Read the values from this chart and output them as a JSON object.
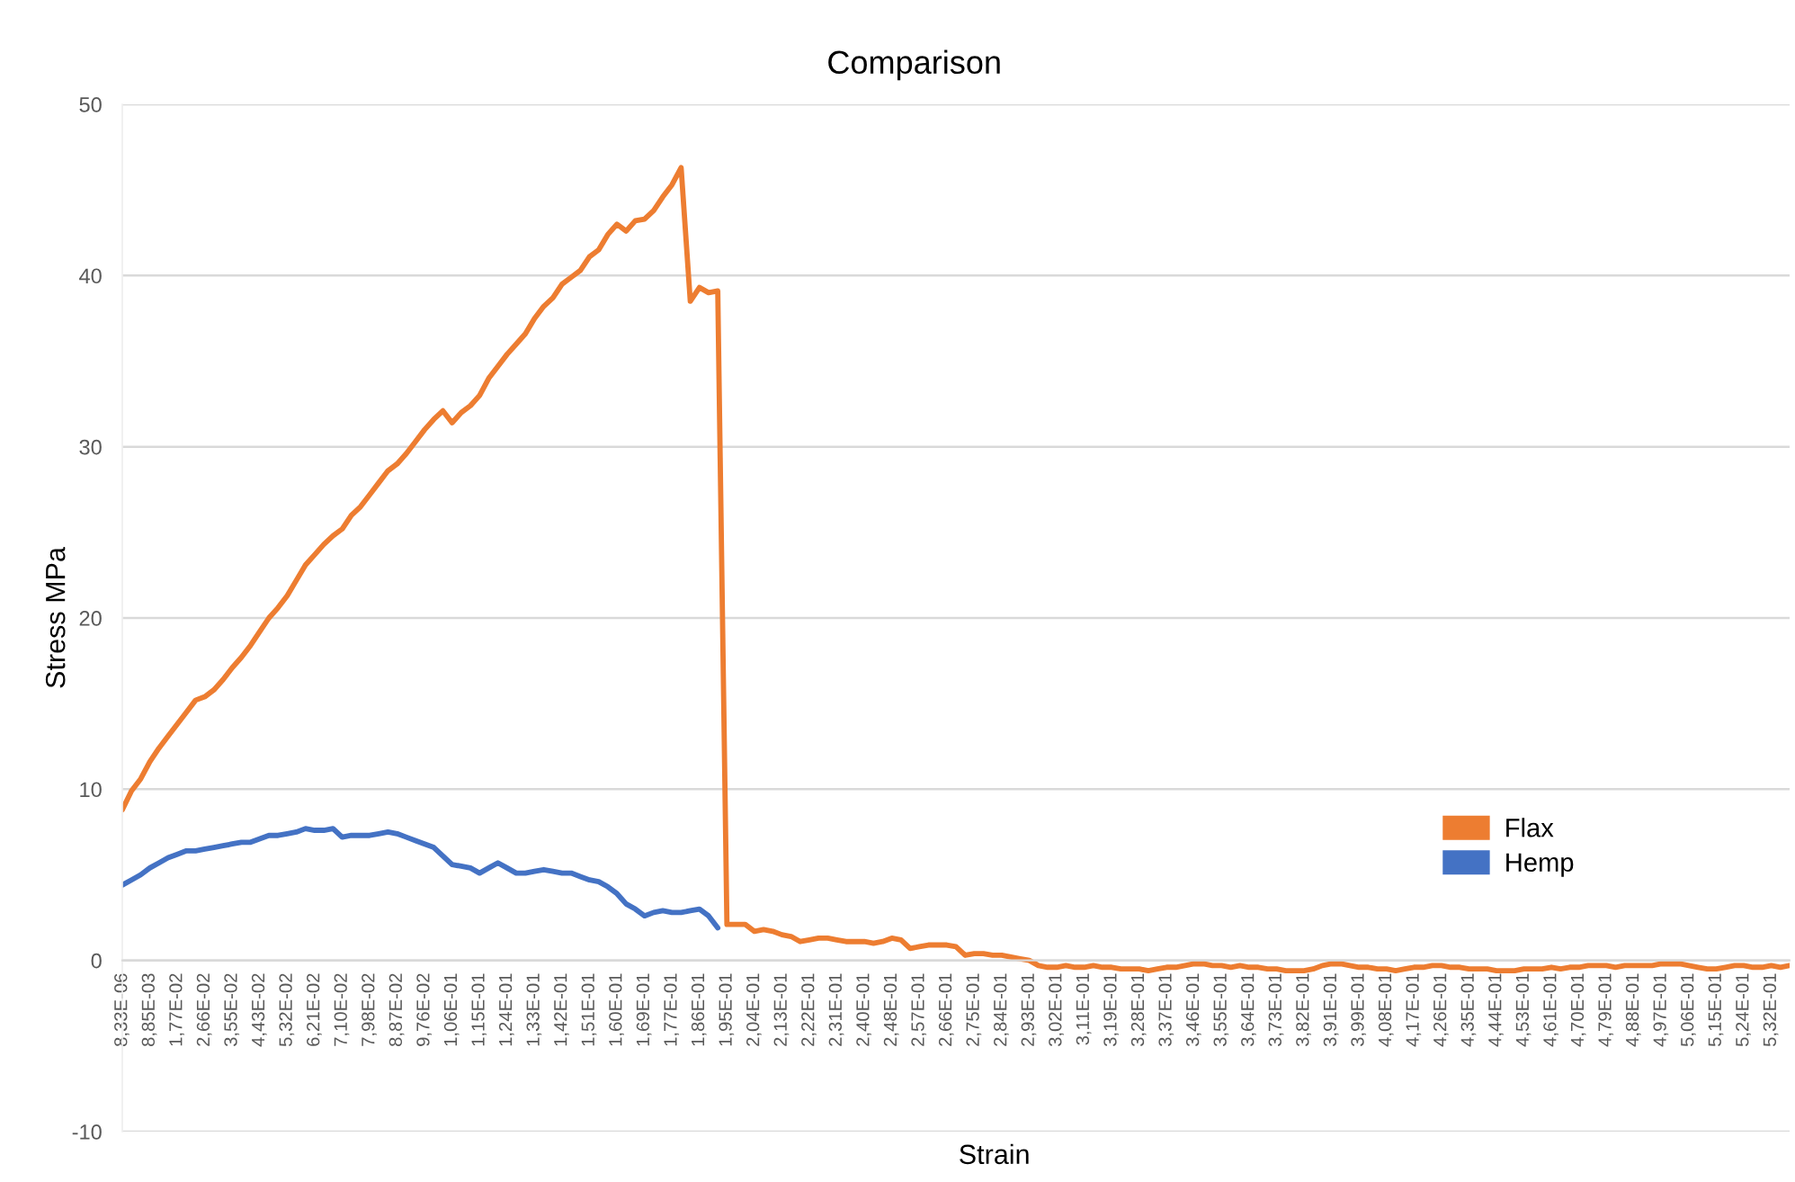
{
  "chart_data": {
    "type": "line",
    "title": "Comparison",
    "xlabel": "Strain",
    "ylabel": "Stress MPa",
    "categories": [
      "8,33E-06",
      null,
      null,
      "8,85E-03",
      null,
      null,
      "1,77E-02",
      null,
      null,
      "2,66E-02",
      null,
      null,
      "3,55E-02",
      null,
      null,
      "4,43E-02",
      null,
      null,
      "5,32E-02",
      null,
      null,
      "6,21E-02",
      null,
      null,
      "7,10E-02",
      null,
      null,
      "7,98E-02",
      null,
      null,
      "8,87E-02",
      null,
      null,
      "9,76E-02",
      null,
      null,
      "1,06E-01",
      null,
      null,
      "1,15E-01",
      null,
      null,
      "1,24E-01",
      null,
      null,
      "1,33E-01",
      null,
      null,
      "1,42E-01",
      null,
      null,
      "1,51E-01",
      null,
      null,
      "1,60E-01",
      null,
      null,
      "1,69E-01",
      null,
      null,
      "1,77E-01",
      null,
      null,
      "1,86E-01",
      null,
      null,
      "1,95E-01",
      null,
      null,
      "2,04E-01",
      null,
      null,
      "2,13E-01",
      null,
      null,
      "2,22E-01",
      null,
      null,
      "2,31E-01",
      null,
      null,
      "2,40E-01",
      null,
      null,
      "2,48E-01",
      null,
      null,
      "2,57E-01",
      null,
      null,
      "2,66E-01",
      null,
      null,
      "2,75E-01",
      null,
      null,
      "2,84E-01",
      null,
      null,
      "2,93E-01",
      null,
      null,
      "3,02E-01",
      null,
      null,
      "3,11E-01",
      null,
      null,
      "3,19E-01",
      null,
      null,
      "3,28E-01",
      null,
      null,
      "3,37E-01",
      null,
      null,
      "3,46E-01",
      null,
      null,
      "3,55E-01",
      null,
      null,
      "3,64E-01",
      null,
      null,
      "3,73E-01",
      null,
      null,
      "3,82E-01",
      null,
      null,
      "3,91E-01",
      null,
      null,
      "3,99E-01",
      null,
      null,
      "4,08E-01",
      null,
      null,
      "4,17E-01",
      null,
      null,
      "4,26E-01",
      null,
      null,
      "4,35E-01",
      null,
      null,
      "4,44E-01",
      null,
      null,
      "4,53E-01",
      null,
      null,
      "4,61E-01",
      null,
      null,
      "4,70E-01",
      null,
      null,
      "4,79E-01",
      null,
      null,
      "4,88E-01",
      null,
      null,
      "4,97E-01",
      null,
      null,
      "5,06E-01",
      null,
      null,
      "5,15E-01",
      null,
      null,
      "5,24E-01",
      null,
      null,
      "5,32E-01",
      null,
      null
    ],
    "ylim": [
      -10,
      50
    ],
    "yticks": [
      -10,
      0,
      10,
      20,
      30,
      40,
      50
    ],
    "grid": "y",
    "legend": "bottom right",
    "series": [
      {
        "name": "Flax",
        "color": "#ed7d31",
        "values": [
          8.8,
          9.9,
          10.6,
          11.6,
          12.4,
          13.1,
          13.8,
          14.5,
          15.2,
          15.4,
          15.8,
          16.4,
          17.1,
          17.7,
          18.4,
          19.2,
          20.0,
          20.6,
          21.3,
          22.2,
          23.1,
          23.7,
          24.3,
          24.8,
          25.2,
          26.0,
          26.5,
          27.2,
          27.9,
          28.6,
          29.0,
          29.6,
          30.3,
          31.0,
          31.6,
          32.1,
          31.4,
          32.0,
          32.4,
          33.0,
          34.0,
          34.7,
          35.4,
          36.0,
          36.6,
          37.5,
          38.2,
          38.7,
          39.5,
          39.9,
          40.3,
          41.1,
          41.5,
          42.4,
          43.0,
          42.6,
          43.2,
          43.3,
          43.8,
          44.6,
          45.3,
          46.3,
          38.5,
          39.3,
          39.0,
          39.1,
          2.1,
          2.1,
          2.1,
          1.7,
          1.8,
          1.7,
          1.5,
          1.4,
          1.1,
          1.2,
          1.3,
          1.3,
          1.2,
          1.1,
          1.1,
          1.1,
          1.0,
          1.1,
          1.3,
          1.2,
          0.7,
          0.8,
          0.9,
          0.9,
          0.9,
          0.8,
          0.3,
          0.4,
          0.4,
          0.3,
          0.3,
          0.2,
          0.1,
          0.0,
          -0.3,
          -0.4,
          -0.4,
          -0.3,
          -0.4,
          -0.4,
          -0.3,
          -0.4,
          -0.4,
          -0.5,
          -0.5,
          -0.5,
          -0.6,
          -0.5,
          -0.4,
          -0.4,
          -0.3,
          -0.2,
          -0.2,
          -0.3,
          -0.3,
          -0.4,
          -0.3,
          -0.4,
          -0.4,
          -0.5,
          -0.5,
          -0.6,
          -0.6,
          -0.6,
          -0.5,
          -0.3,
          -0.2,
          -0.2,
          -0.3,
          -0.4,
          -0.4,
          -0.5,
          -0.5,
          -0.6,
          -0.5,
          -0.4,
          -0.4,
          -0.3,
          -0.3,
          -0.4,
          -0.4,
          -0.5,
          -0.5,
          -0.5,
          -0.6,
          -0.6,
          -0.6,
          -0.5,
          -0.5,
          -0.5,
          -0.4,
          -0.5,
          -0.4,
          -0.4,
          -0.3,
          -0.3,
          -0.3,
          -0.4,
          -0.3,
          -0.3,
          -0.3,
          -0.3,
          -0.2,
          -0.2,
          -0.2,
          -0.3,
          -0.4,
          -0.5,
          -0.5,
          -0.4,
          -0.3,
          -0.3,
          -0.4,
          -0.4,
          -0.3,
          -0.4,
          -0.3
        ]
      },
      {
        "name": "Hemp",
        "color": "#4472c4",
        "values": [
          4.4,
          4.7,
          5.0,
          5.4,
          5.7,
          6.0,
          6.2,
          6.4,
          6.4,
          6.5,
          6.6,
          6.7,
          6.8,
          6.9,
          6.9,
          7.1,
          7.3,
          7.3,
          7.4,
          7.5,
          7.7,
          7.6,
          7.6,
          7.7,
          7.2,
          7.3,
          7.3,
          7.3,
          7.4,
          7.5,
          7.4,
          7.2,
          7.0,
          6.8,
          6.6,
          6.1,
          5.6,
          5.5,
          5.4,
          5.1,
          5.4,
          5.7,
          5.4,
          5.1,
          5.1,
          5.2,
          5.3,
          5.2,
          5.1,
          5.1,
          4.9,
          4.7,
          4.6,
          4.3,
          3.9,
          3.3,
          3.0,
          2.6,
          2.8,
          2.9,
          2.8,
          2.8,
          2.9,
          3.0,
          2.6,
          1.9,
          null,
          null,
          null,
          null,
          null,
          null,
          null,
          null,
          null,
          null,
          null,
          null,
          null,
          null,
          null,
          null,
          null,
          null,
          null,
          null,
          null,
          null,
          null,
          null,
          null,
          null,
          null,
          null,
          null,
          null,
          null,
          null,
          null,
          null,
          null,
          null,
          null,
          null,
          null,
          null,
          null,
          null,
          null,
          null,
          null,
          null,
          null,
          null,
          null,
          null,
          null,
          null,
          null,
          null,
          null,
          null,
          null,
          null,
          null,
          null,
          null,
          null,
          null,
          null,
          null,
          null,
          null,
          null,
          null,
          null,
          null,
          null,
          null,
          null,
          null,
          null,
          null,
          null,
          null,
          null,
          null,
          null,
          null,
          null,
          null,
          null,
          null,
          null,
          null,
          null,
          null,
          null,
          null,
          null,
          null,
          null,
          null,
          null,
          null,
          null,
          null,
          null,
          null,
          null,
          null,
          null,
          null,
          null,
          null,
          null,
          null,
          null,
          null,
          null,
          null,
          null,
          null
        ]
      }
    ]
  }
}
